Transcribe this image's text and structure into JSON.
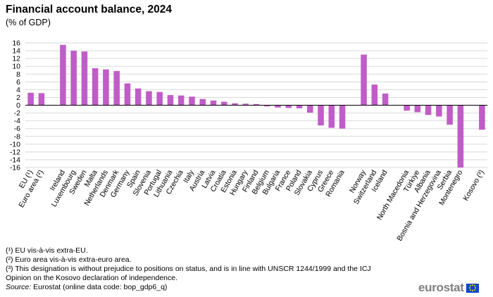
{
  "chart_data": {
    "type": "bar",
    "title": "Financial account balance, 2024",
    "subtitle": "(% of GDP)",
    "ylim": [
      -16,
      16
    ],
    "yticks": [
      16,
      14,
      12,
      10,
      8,
      6,
      4,
      2,
      0,
      -2,
      -4,
      -6,
      -8,
      -10,
      -12,
      -14,
      -16
    ],
    "bar_color": "#c05cc7",
    "categories": [
      "EU (¹)",
      "Euro area (²)",
      "",
      "Ireland",
      "Luxembourg",
      "Sweden",
      "Malta",
      "Netherlands",
      "Denmark",
      "Germany",
      "Spain",
      "Slovenia",
      "Portugal",
      "Lithuania",
      "Czechia",
      "Italy",
      "Austria",
      "Latvia",
      "Croatia",
      "Estonia",
      "Hungary",
      "Finland",
      "Belgium",
      "Bulgaria",
      "France",
      "Poland",
      "Slovakia",
      "Cyprus",
      "Greece",
      "Romania",
      "",
      "Norway",
      "Switzerland",
      "Iceland",
      "",
      "North Macedonia",
      "Türkiye",
      "Albania",
      "Bosnia and Herzegovina",
      "Serbia",
      "Montenegro",
      "",
      "Kosovo (³)"
    ],
    "values": [
      3.2,
      3.1,
      null,
      15.5,
      14.0,
      13.8,
      9.5,
      9.2,
      8.8,
      5.6,
      4.3,
      3.6,
      3.4,
      2.6,
      2.5,
      2.2,
      1.6,
      1.2,
      0.9,
      0.5,
      0.4,
      0.3,
      -0.3,
      -0.6,
      -0.7,
      -0.8,
      -1.9,
      -5.2,
      -5.8,
      -6.0,
      null,
      13.0,
      5.3,
      3.0,
      null,
      -1.4,
      -1.8,
      -2.5,
      -2.9,
      -5.0,
      -16.0,
      null,
      -6.3
    ]
  },
  "footnotes": [
    "(¹) EU vis-à-vis extra-EU.",
    "(²) Euro area vis-à-vis extra-euro  area.",
    "(³) This designation is without  prejudice to positions on status, and is in line with UNSCR 1244/1999 and the ICJ",
    "Opinion on the Kosovo declaration of independence."
  ],
  "source": {
    "label": "Source:",
    "text": "Eurostat (online data code: bop_gdp6_q)"
  },
  "logo": {
    "text": "eurostat"
  }
}
